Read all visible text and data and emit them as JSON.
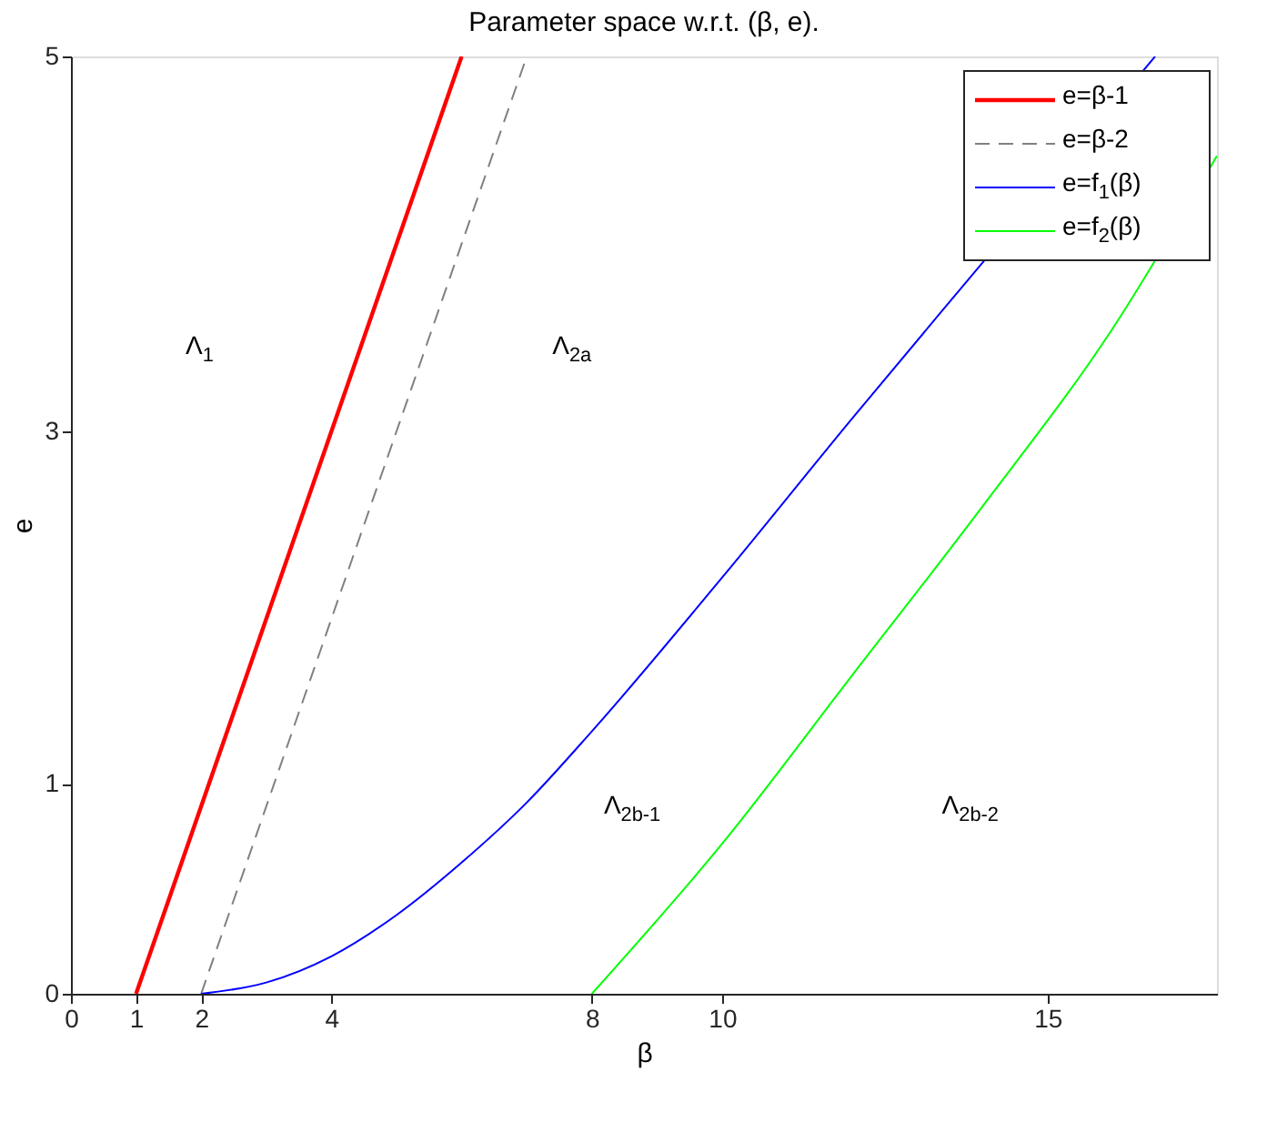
{
  "chart_data": {
    "type": "line",
    "title": "Parameter space w.r.t. (β, e).",
    "xlabel": "β",
    "ylabel": "e",
    "xlim": [
      0,
      17.6
    ],
    "ylim": [
      0,
      5
    ],
    "xticks": [
      0,
      1,
      2,
      4,
      8,
      10,
      15
    ],
    "yticks": [
      0,
      {
        "value": 1.12,
        "label": "1"
      },
      3,
      5
    ],
    "grid": false,
    "legend": "top right",
    "marker": "none",
    "series": [
      {
        "name": "e=β-1",
        "color": "#ff0000",
        "line_style": "solid",
        "x": [
          1,
          6
        ],
        "values": [
          0,
          5
        ]
      },
      {
        "name": "e=β-2",
        "color": "#808080",
        "line_style": "dashed",
        "x": [
          2,
          7
        ],
        "values": [
          0,
          5
        ]
      },
      {
        "name": "e=f$_{1}$(β)",
        "color": "#0000ff",
        "line_style": "solid",
        "x": [
          2,
          3,
          4,
          5,
          6,
          7,
          8,
          10,
          12,
          14,
          16.65
        ],
        "values": [
          0,
          0.06,
          0.2,
          0.42,
          0.7,
          1.02,
          1.4,
          2.22,
          3.07,
          3.9,
          5
        ]
      },
      {
        "name": "e=f$_{2}$(β)",
        "color": "#00ff00",
        "line_style": "solid",
        "x": [
          8,
          10,
          12,
          14,
          16,
          17.6
        ],
        "values": [
          0,
          0.8,
          1.7,
          2.6,
          3.55,
          4.47
        ]
      }
    ],
    "annotations": [
      "Λ$_{1}$",
      "Λ$_{2a}$",
      "Λ$_{2b-1}$",
      "Λ$_{2b-2}$"
    ]
  }
}
